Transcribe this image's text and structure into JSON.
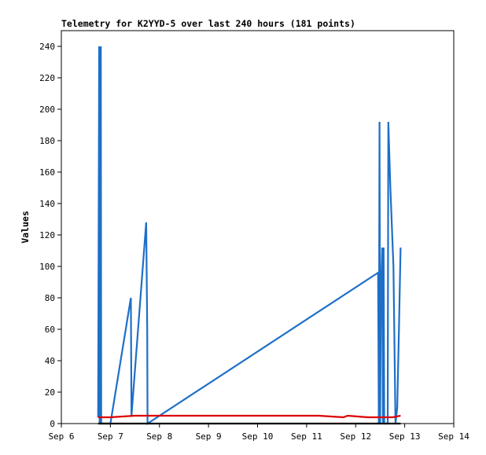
{
  "chart_data": {
    "type": "line",
    "title": "Telemetry for K2YYD-5 over last 240 hours (181 points)",
    "xlabel": "",
    "ylabel": "Values",
    "x_tick_labels": [
      "Sep 6",
      "Sep 7",
      "Sep 8",
      "Sep 9",
      "Sep 10",
      "Sep 11",
      "Sep 12",
      "Sep 13",
      "Sep 14"
    ],
    "xlim": [
      "2024-09-06T00:00",
      "2024-09-14T00:00"
    ],
    "ylim": [
      0,
      250
    ],
    "y_ticks": [
      0,
      20,
      40,
      60,
      80,
      100,
      120,
      140,
      160,
      180,
      200,
      220,
      240
    ],
    "grid": false,
    "legend": "none",
    "series": [
      {
        "color": "#1e6fc8",
        "points": [
          [
            "2024-09-06T18:00",
            4
          ],
          [
            "2024-09-06T18:30",
            240
          ],
          [
            "2024-09-06T18:45",
            0
          ],
          [
            "2024-09-06T19:00",
            240
          ],
          [
            "2024-09-06T19:10",
            215
          ],
          [
            "2024-09-06T19:20",
            240
          ],
          [
            "2024-09-06T19:30",
            0
          ],
          [
            "2024-09-07T00:00",
            0
          ],
          [
            "2024-09-07T10:00",
            80
          ],
          [
            "2024-09-07T10:20",
            5
          ],
          [
            "2024-09-07T17:30",
            128
          ],
          [
            "2024-09-07T18:00",
            60
          ],
          [
            "2024-09-07T18:10",
            0
          ],
          [
            "2024-09-12T11:00",
            96
          ],
          [
            "2024-09-12T11:20",
            0
          ],
          [
            "2024-09-12T11:40",
            192
          ],
          [
            "2024-09-12T12:00",
            0
          ],
          [
            "2024-09-12T12:20",
            80
          ],
          [
            "2024-09-12T13:00",
            112
          ],
          [
            "2024-09-12T13:20",
            0
          ],
          [
            "2024-09-12T13:40",
            112
          ],
          [
            "2024-09-12T14:00",
            0
          ],
          [
            "2024-09-12T15:40",
            0
          ],
          [
            "2024-09-12T16:00",
            192
          ],
          [
            "2024-09-12T17:00",
            150
          ],
          [
            "2024-09-12T18:30",
            100
          ],
          [
            "2024-09-12T19:30",
            0
          ],
          [
            "2024-09-12T20:20",
            10
          ],
          [
            "2024-09-12T21:10",
            60
          ],
          [
            "2024-09-12T22:00",
            112
          ]
        ]
      },
      {
        "color": "#dd0000",
        "points": [
          [
            "2024-09-06T18:00",
            4
          ],
          [
            "2024-09-07T00:00",
            4
          ],
          [
            "2024-09-07T12:00",
            5
          ],
          [
            "2024-09-07T18:00",
            5
          ],
          [
            "2024-09-08T12:00",
            5
          ],
          [
            "2024-09-10T12:00",
            5
          ],
          [
            "2024-09-11T06:00",
            5
          ],
          [
            "2024-09-11T18:00",
            4
          ],
          [
            "2024-09-11T20:00",
            5
          ],
          [
            "2024-09-12T06:00",
            4
          ],
          [
            "2024-09-12T18:00",
            4
          ],
          [
            "2024-09-12T22:00",
            5
          ]
        ]
      },
      {
        "color": "#000000",
        "points": [
          [
            "2024-09-06T18:00",
            0
          ],
          [
            "2024-09-12T22:00",
            0
          ]
        ]
      }
    ]
  }
}
